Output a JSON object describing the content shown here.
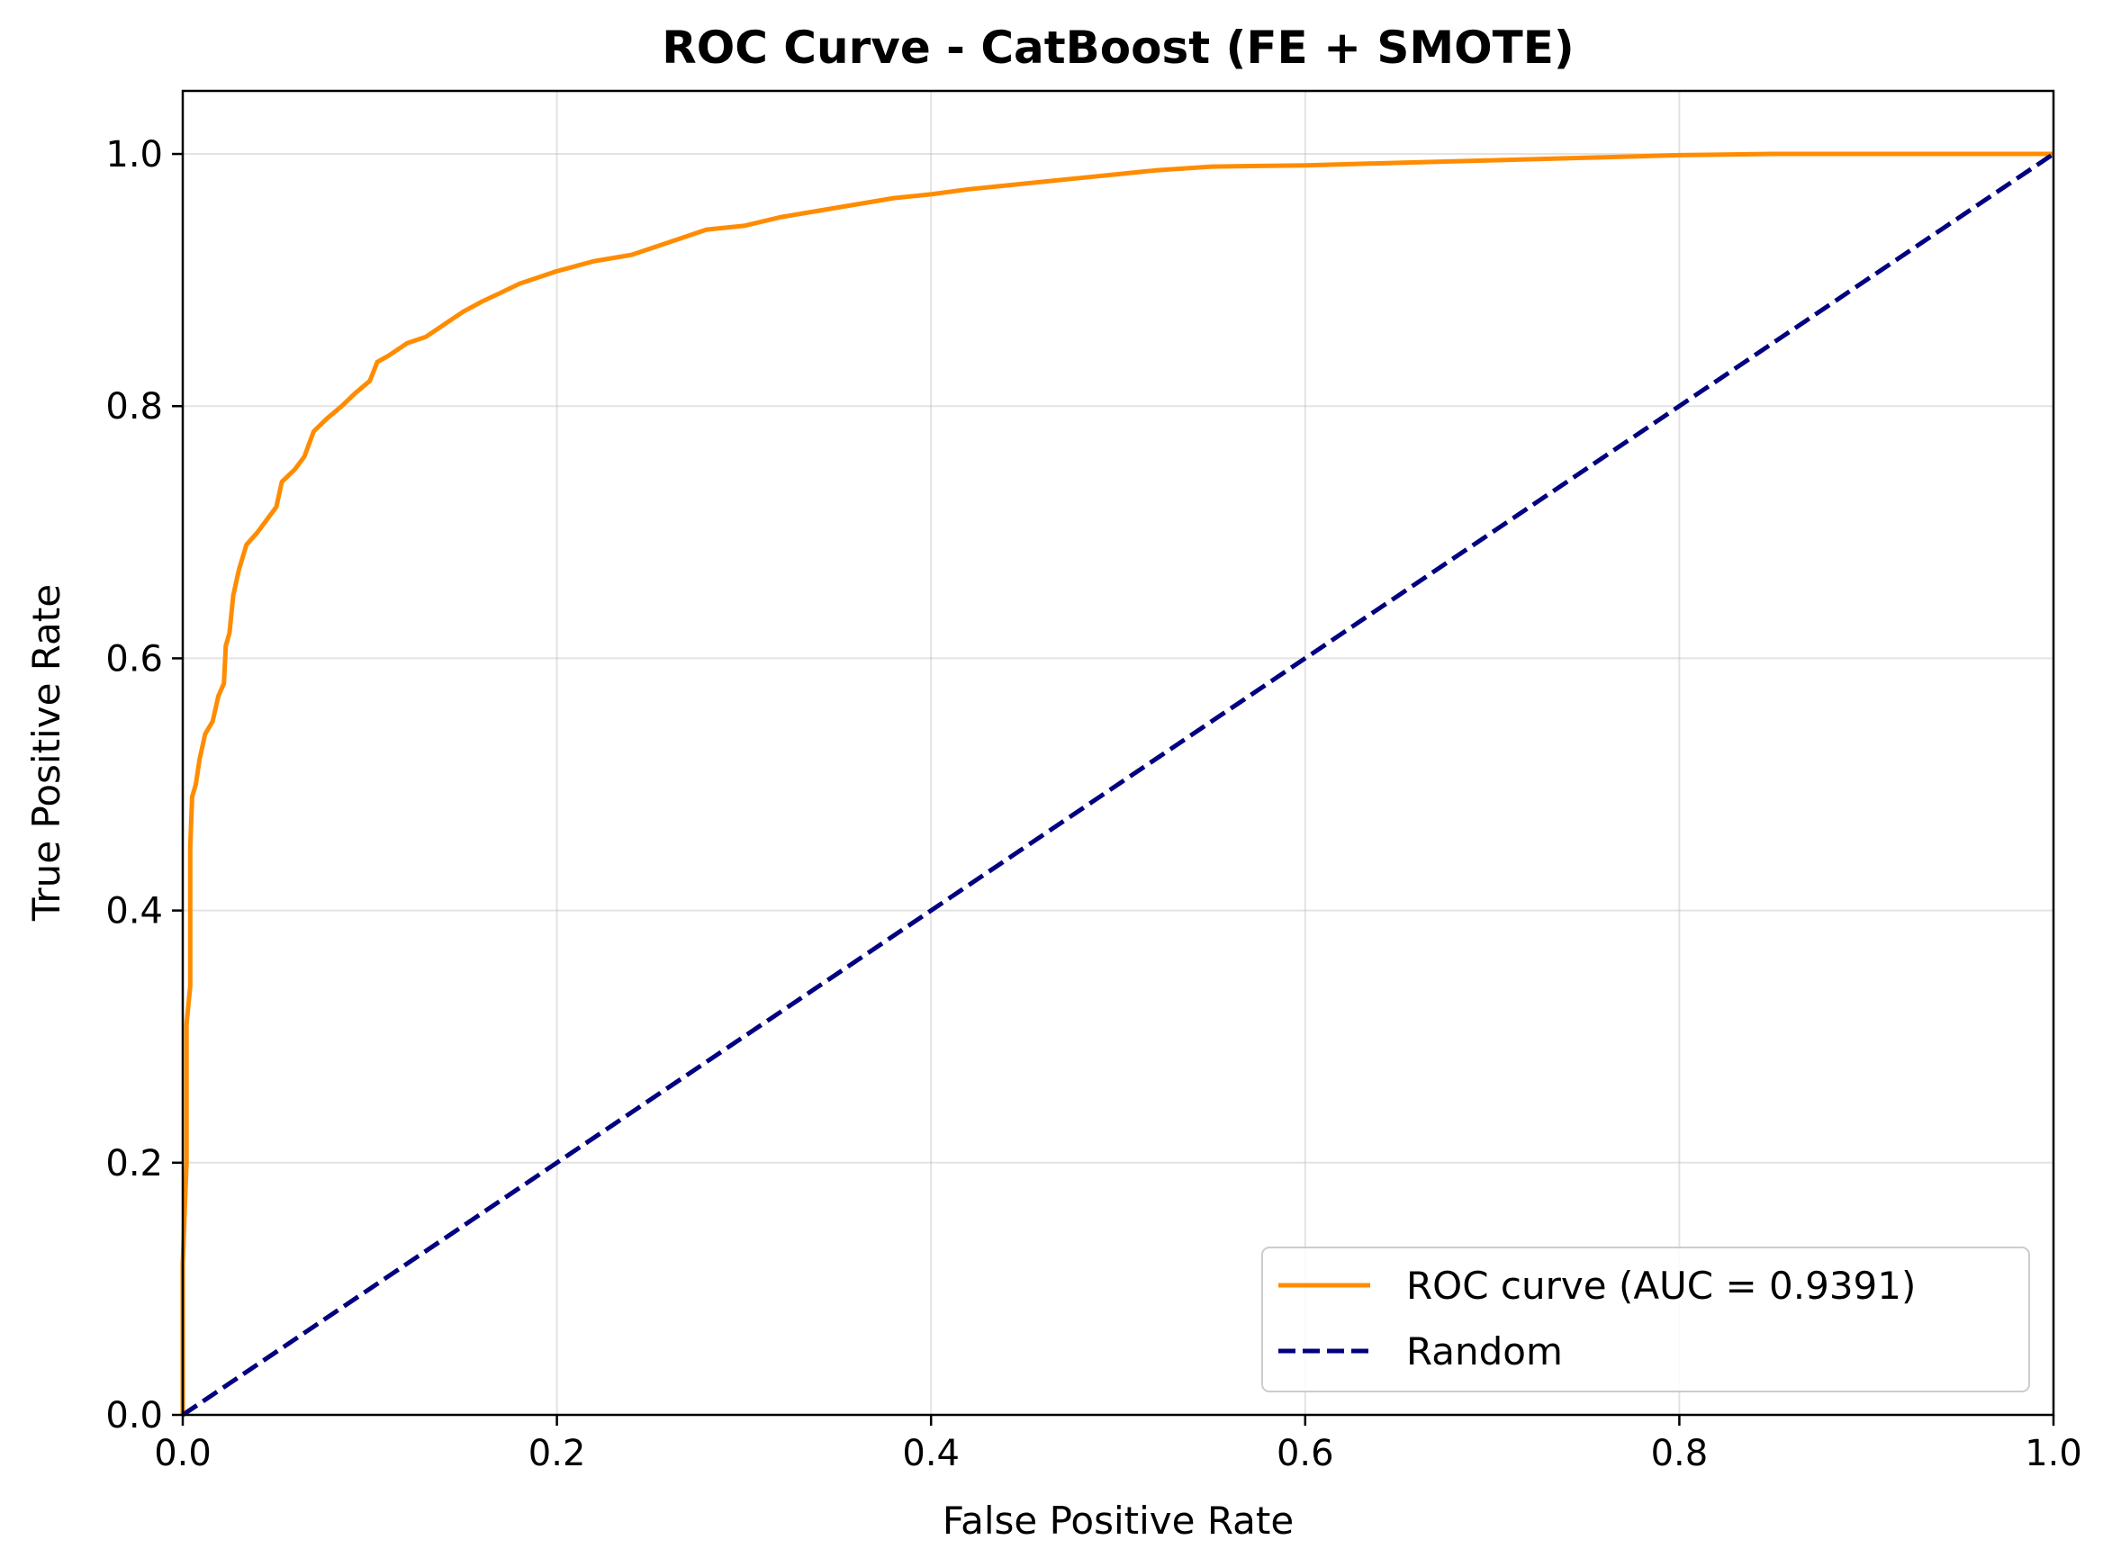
{
  "chart_data": {
    "type": "line",
    "title": "ROC Curve - CatBoost (FE + SMOTE)",
    "xlabel": "False Positive Rate",
    "ylabel": "True Positive Rate",
    "xlim": [
      0.0,
      1.0
    ],
    "ylim": [
      0.0,
      1.05
    ],
    "xticks": [
      0.0,
      0.2,
      0.4,
      0.6,
      0.8,
      1.0
    ],
    "yticks": [
      0.0,
      0.2,
      0.4,
      0.6,
      0.8,
      1.0
    ],
    "xtick_labels": [
      "0.0",
      "0.2",
      "0.4",
      "0.6",
      "0.8",
      "1.0"
    ],
    "ytick_labels": [
      "0.0",
      "0.2",
      "0.4",
      "0.6",
      "0.8",
      "1.0"
    ],
    "grid": true,
    "legend_position": "lower-right",
    "series": [
      {
        "name": "ROC curve (AUC = 0.9391)",
        "color": "#ff8c00",
        "style": "solid",
        "points": [
          [
            0.0,
            0.0
          ],
          [
            0.0,
            0.12
          ],
          [
            0.002,
            0.2
          ],
          [
            0.002,
            0.31
          ],
          [
            0.004,
            0.34
          ],
          [
            0.004,
            0.45
          ],
          [
            0.005,
            0.49
          ],
          [
            0.007,
            0.5
          ],
          [
            0.009,
            0.52
          ],
          [
            0.012,
            0.54
          ],
          [
            0.016,
            0.55
          ],
          [
            0.019,
            0.57
          ],
          [
            0.022,
            0.58
          ],
          [
            0.023,
            0.61
          ],
          [
            0.025,
            0.62
          ],
          [
            0.027,
            0.65
          ],
          [
            0.03,
            0.67
          ],
          [
            0.034,
            0.69
          ],
          [
            0.04,
            0.7
          ],
          [
            0.045,
            0.71
          ],
          [
            0.05,
            0.72
          ],
          [
            0.053,
            0.74
          ],
          [
            0.06,
            0.75
          ],
          [
            0.065,
            0.76
          ],
          [
            0.07,
            0.78
          ],
          [
            0.077,
            0.79
          ],
          [
            0.085,
            0.8
          ],
          [
            0.092,
            0.81
          ],
          [
            0.1,
            0.82
          ],
          [
            0.104,
            0.835
          ],
          [
            0.11,
            0.84
          ],
          [
            0.12,
            0.85
          ],
          [
            0.13,
            0.855
          ],
          [
            0.14,
            0.865
          ],
          [
            0.15,
            0.875
          ],
          [
            0.16,
            0.883
          ],
          [
            0.17,
            0.89
          ],
          [
            0.18,
            0.897
          ],
          [
            0.19,
            0.902
          ],
          [
            0.2,
            0.907
          ],
          [
            0.22,
            0.915
          ],
          [
            0.24,
            0.92
          ],
          [
            0.26,
            0.93
          ],
          [
            0.27,
            0.935
          ],
          [
            0.28,
            0.94
          ],
          [
            0.3,
            0.943
          ],
          [
            0.32,
            0.95
          ],
          [
            0.34,
            0.955
          ],
          [
            0.36,
            0.96
          ],
          [
            0.38,
            0.965
          ],
          [
            0.4,
            0.968
          ],
          [
            0.42,
            0.972
          ],
          [
            0.44,
            0.975
          ],
          [
            0.46,
            0.978
          ],
          [
            0.48,
            0.981
          ],
          [
            0.5,
            0.984
          ],
          [
            0.52,
            0.987
          ],
          [
            0.55,
            0.99
          ],
          [
            0.6,
            0.991
          ],
          [
            0.65,
            0.993
          ],
          [
            0.7,
            0.995
          ],
          [
            0.75,
            0.997
          ],
          [
            0.8,
            0.999
          ],
          [
            0.85,
            1.0
          ],
          [
            0.95,
            1.0
          ],
          [
            1.0,
            1.0
          ]
        ]
      },
      {
        "name": "Random",
        "color": "#000080",
        "style": "dashed",
        "points": [
          [
            0.0,
            0.0
          ],
          [
            1.0,
            1.0
          ]
        ]
      }
    ]
  }
}
